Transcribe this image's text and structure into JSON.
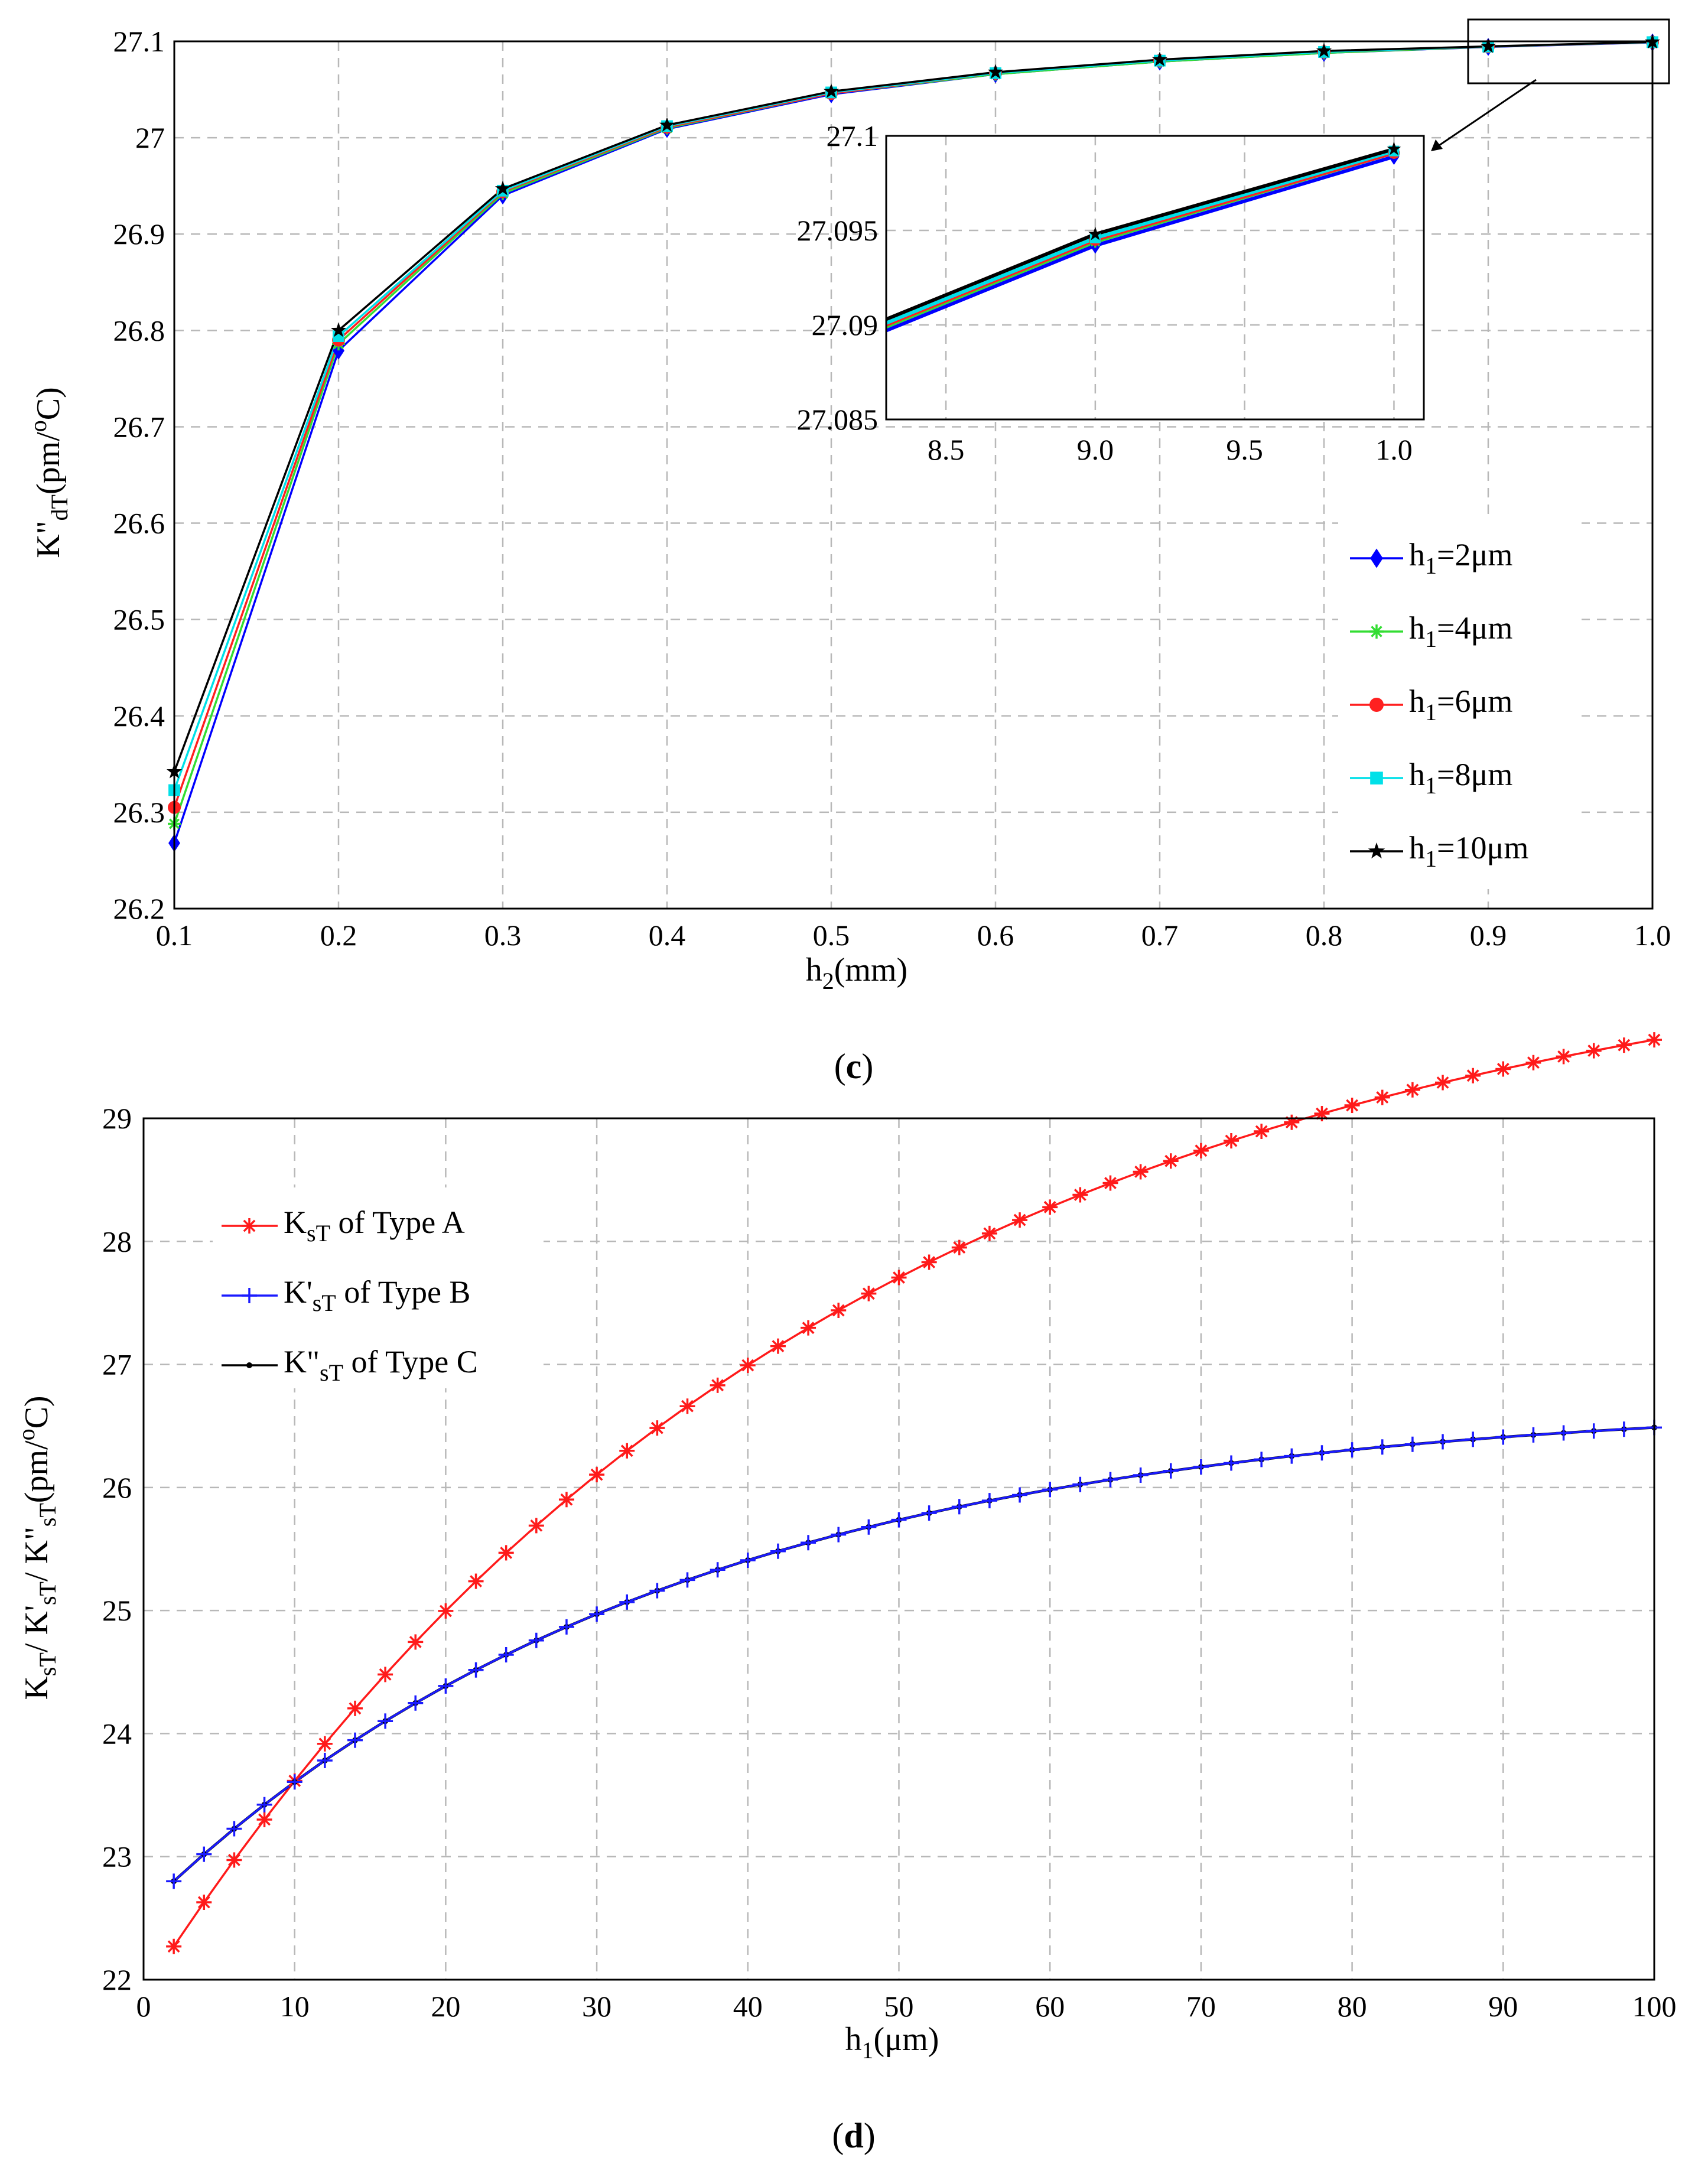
{
  "chart_data": [
    {
      "id": "c",
      "type": "line",
      "panel_label": "c",
      "xlabel": {
        "base": "h",
        "sub": "2",
        "rest": "(mm)"
      },
      "ylabel": {
        "base": "K\"",
        "sub": "dT",
        "rest": "(pm/",
        "sup": "o",
        "tail": "C)"
      },
      "xlim": [
        0.1,
        1.0
      ],
      "ylim": [
        26.2,
        27.1
      ],
      "xticks": [
        0.1,
        0.2,
        0.3,
        0.4,
        0.5,
        0.6,
        0.7,
        0.8,
        0.9,
        1.0
      ],
      "xtick_labels": [
        "0.1",
        "0.2",
        "0.3",
        "0.4",
        "0.5",
        "0.6",
        "0.7",
        "0.8",
        "0.9",
        "1.0"
      ],
      "yticks": [
        26.2,
        26.3,
        26.4,
        26.5,
        26.6,
        26.7,
        26.8,
        26.9,
        27.0,
        27.1
      ],
      "ytick_labels": [
        "26.2",
        "26.3",
        "26.4",
        "26.5",
        "26.6",
        "26.7",
        "26.8",
        "26.9",
        "27",
        "27.1"
      ],
      "grid": true,
      "legend_position": "bottom-right",
      "x": [
        0.1,
        0.2,
        0.3,
        0.4,
        0.5,
        0.6,
        0.7,
        0.8,
        0.9,
        1.0
      ],
      "series": [
        {
          "name": "h1=2μm",
          "label": {
            "base": "h",
            "sub": "1",
            "rest": "=2μm"
          },
          "color": "#0000ff",
          "marker": "diamond",
          "values": [
            26.268,
            26.779,
            26.94,
            27.009,
            27.045,
            27.066,
            27.079,
            27.088,
            27.0942,
            27.0989
          ]
        },
        {
          "name": "h1=4μm",
          "label": {
            "base": "h",
            "sub": "1",
            "rest": "=4μm"
          },
          "color": "#33dd33",
          "marker": "asterisk",
          "values": [
            26.288,
            26.786,
            26.942,
            27.01,
            27.046,
            27.066,
            27.079,
            27.088,
            27.0944,
            27.0991
          ]
        },
        {
          "name": "h1=6μm",
          "label": {
            "base": "h",
            "sub": "1",
            "rest": "=6μm"
          },
          "color": "#ff2020",
          "marker": "circle",
          "values": [
            26.305,
            26.79,
            26.944,
            27.011,
            27.046,
            27.067,
            27.08,
            27.089,
            27.0945,
            27.0991
          ]
        },
        {
          "name": "h1=8μm",
          "label": {
            "base": "h",
            "sub": "1",
            "rest": "=8μm"
          },
          "color": "#00e0e8",
          "marker": "square",
          "values": [
            26.323,
            26.794,
            26.945,
            27.012,
            27.047,
            27.067,
            27.08,
            27.089,
            27.0946,
            27.0992
          ]
        },
        {
          "name": "h1=10μm",
          "label": {
            "base": "h",
            "sub": "1",
            "rest": "=10μm"
          },
          "color": "#000000",
          "marker": "star",
          "values": [
            26.342,
            26.8,
            26.947,
            27.013,
            27.048,
            27.068,
            27.081,
            27.09,
            27.0948,
            27.0993
          ]
        }
      ],
      "inset": {
        "xlim": [
          0.83,
          1.01
        ],
        "ylim": [
          27.085,
          27.1
        ],
        "xticks": [
          0.85,
          0.9,
          0.95,
          1.0
        ],
        "xtick_labels": [
          "8.5",
          "9.0",
          "9.5",
          "1.0"
        ],
        "yticks": [
          27.085,
          27.09,
          27.095,
          27.1
        ],
        "ytick_labels": [
          "27.085",
          "27.09",
          "27.095",
          "27.1"
        ],
        "x_start": 0.83,
        "y_start": [
          27.0897,
          27.0899,
          27.09,
          27.0901,
          27.0903
        ]
      }
    },
    {
      "id": "d",
      "type": "line",
      "panel_label": "d",
      "xlabel": {
        "base": "h",
        "sub": "1",
        "rest": "(μm)"
      },
      "ylabel": {
        "k1": "K",
        "k1sub": "sT",
        "sep1": "/ K'",
        "k2sub": "sT",
        "sep2": "/ K\"",
        "k3sub": "sT",
        "rest": "(pm/",
        "sup": "o",
        "tail": "C)"
      },
      "xlim": [
        0,
        100
      ],
      "ylim": [
        22,
        29
      ],
      "xticks": [
        0,
        10,
        20,
        30,
        40,
        50,
        60,
        70,
        80,
        90,
        100
      ],
      "xtick_labels": [
        "0",
        "10",
        "20",
        "30",
        "40",
        "50",
        "60",
        "70",
        "80",
        "90",
        "100"
      ],
      "yticks": [
        22,
        23,
        24,
        25,
        26,
        27,
        28,
        29
      ],
      "ytick_labels": [
        "22",
        "23",
        "24",
        "25",
        "26",
        "27",
        "28",
        "29"
      ],
      "grid": true,
      "legend_position": "top-left",
      "series": [
        {
          "name": "KsT of Type A",
          "label": {
            "base": "K",
            "sub": "sT",
            "rest": " of Type A"
          },
          "color": "#ff1a1a",
          "marker": "asterisk",
          "x_range": [
            2,
            100,
            2
          ],
          "values": {
            "fit": "exp",
            "limit": 30.6,
            "amplitude": 8.33,
            "tau": 45.4,
            "x0": 2
          }
        },
        {
          "name": "K'sT of Type B",
          "label": {
            "base": "K'",
            "sub": "sT",
            "rest": " of Type B"
          },
          "color": "#1a1aff",
          "marker": "plus",
          "x_range": [
            2,
            100,
            2
          ],
          "values": {
            "fit": "exp",
            "limit": 26.72,
            "amplitude": 3.92,
            "tau": 34.7,
            "x0": 2
          }
        },
        {
          "name": "K\"sT of Type C",
          "label": {
            "base": "K\"",
            "sub": "sT",
            "rest": " of Type C"
          },
          "color": "#000000",
          "marker": "dot",
          "x_range": [
            2,
            100,
            2
          ],
          "values": {
            "fit": "exp",
            "limit": 26.72,
            "amplitude": 3.92,
            "tau": 34.7,
            "x0": 2
          }
        }
      ]
    }
  ]
}
